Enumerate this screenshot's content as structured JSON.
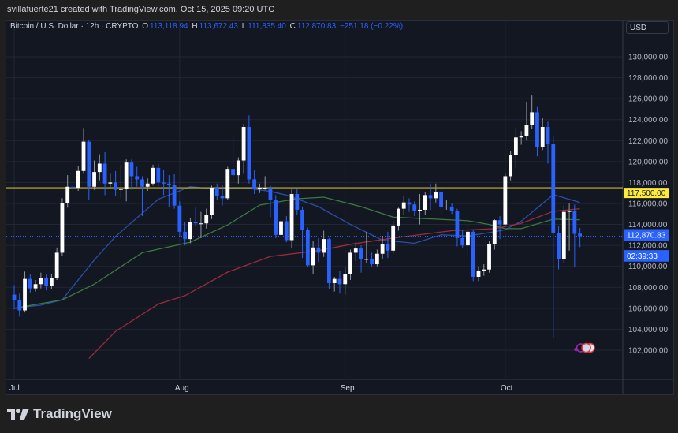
{
  "credit": "svillafuerte21 created with TradingView.com, Oct 15, 2025 09:20 UTC",
  "legend": {
    "symbol": "Bitcoin / U.S. Dollar · 12h · CRYPTO",
    "open_label": "O",
    "open": "113,118.94",
    "high_label": "H",
    "high": "113,672.43",
    "low_label": "L",
    "low": "111,835.40",
    "close_label": "C",
    "close": "112,870.83",
    "change": "−251.18 (−0.22%)"
  },
  "currency": "USD",
  "brand": "TradingView",
  "colors": {
    "up": "#ffffff",
    "down": "#2962ff",
    "level": "#c8b53a",
    "level_label": "#ffeb3b",
    "price_label": "#2962ff",
    "ma_blue": "#2a4fa8",
    "ma_green": "#3b7a3f",
    "ma_red": "#9c2b3a",
    "grid": "#232735",
    "bg": "#131722"
  },
  "chart_data": {
    "type": "candlestick",
    "y_axis": {
      "min": 101000,
      "max": 131500,
      "ticks": [
        "130,000.00",
        "128,000.00",
        "126,000.00",
        "124,000.00",
        "122,000.00",
        "120,000.00",
        "118,000.00",
        "116,000.00",
        "114,000.00",
        "112,000.00",
        "110,000.00",
        "108,000.00",
        "106,000.00",
        "104,000.00",
        "102,000.00"
      ],
      "tick_values": [
        130000,
        128000,
        126000,
        124000,
        122000,
        120000,
        118000,
        116000,
        114000,
        112000,
        110000,
        108000,
        106000,
        104000,
        102000
      ]
    },
    "x_axis": {
      "labels": [
        "Jul",
        "Aug",
        "Sep",
        "Oct"
      ],
      "label_dates": [
        "Jul 1",
        "Aug 1",
        "Sep 1",
        "Oct 1"
      ]
    },
    "grid": true,
    "horizontal_level": {
      "value": 117500,
      "label": "117,500.00"
    },
    "current_price": {
      "value": 112870.83,
      "label": "112,870.83",
      "countdown": "02:39:33"
    },
    "candles": [
      [
        "Jul 1",
        107300,
        108200,
        105900,
        106800
      ],
      [
        "Jul 2",
        106800,
        107400,
        105200,
        105800
      ],
      [
        "Jul 3",
        105800,
        109500,
        105600,
        108800
      ],
      [
        "Jul 4",
        108800,
        109300,
        107500,
        107900
      ],
      [
        "Jul 5",
        107900,
        108700,
        107600,
        108300
      ],
      [
        "Jul 6",
        108300,
        109400,
        107900,
        108900
      ],
      [
        "Jul 7",
        108900,
        109200,
        107700,
        108100
      ],
      [
        "Jul 8",
        108100,
        109300,
        107800,
        108900
      ],
      [
        "Jul 9",
        108900,
        111800,
        108700,
        111300
      ],
      [
        "Jul 10",
        111300,
        116500,
        111000,
        116000
      ],
      [
        "Jul 11",
        116000,
        118700,
        115600,
        117600
      ],
      [
        "Jul 12",
        117600,
        118200,
        116900,
        117500
      ],
      [
        "Jul 13",
        117500,
        119600,
        117200,
        119100
      ],
      [
        "Jul 14",
        119100,
        123200,
        118900,
        121900
      ],
      [
        "Jul 15",
        121900,
        122100,
        116300,
        117600
      ],
      [
        "Jul 16",
        117600,
        120100,
        117300,
        119000
      ],
      [
        "Jul 17",
        119000,
        120700,
        118200,
        119800
      ],
      [
        "Jul 18",
        119800,
        120900,
        116800,
        117900
      ],
      [
        "Jul 19",
        117900,
        118900,
        117500,
        118000
      ],
      [
        "Jul 20",
        118000,
        119100,
        116700,
        117300
      ],
      [
        "Jul 21",
        117300,
        119700,
        116500,
        117400
      ],
      [
        "Jul 22",
        117400,
        120200,
        116200,
        119900
      ],
      [
        "Jul 23",
        119900,
        120200,
        117300,
        118600
      ],
      [
        "Jul 24",
        118600,
        119500,
        117600,
        118300
      ],
      [
        "Jul 25",
        118300,
        118600,
        114800,
        117600
      ],
      [
        "Jul 26",
        117600,
        118400,
        117200,
        117900
      ],
      [
        "Jul 27",
        117900,
        119700,
        117700,
        119400
      ],
      [
        "Jul 28",
        119400,
        119800,
        117600,
        118000
      ],
      [
        "Jul 29",
        118000,
        119200,
        116800,
        117900
      ],
      [
        "Jul 30",
        117900,
        118700,
        115700,
        117800
      ],
      [
        "Jul 31",
        117800,
        118800,
        115500,
        115800
      ],
      [
        "Aug 1",
        115800,
        116200,
        112800,
        113300
      ],
      [
        "Aug 2",
        113300,
        114200,
        112000,
        112600
      ],
      [
        "Aug 3",
        112600,
        114600,
        112200,
        114200
      ],
      [
        "Aug 4",
        114200,
        115700,
        113800,
        114100
      ],
      [
        "Aug 5",
        114100,
        115200,
        112700,
        114100
      ],
      [
        "Aug 6",
        114100,
        115500,
        113600,
        114900
      ],
      [
        "Aug 7",
        114900,
        117700,
        114500,
        117500
      ],
      [
        "Aug 8",
        117500,
        117900,
        116300,
        116700
      ],
      [
        "Aug 9",
        116700,
        117800,
        115800,
        116500
      ],
      [
        "Aug 10",
        116500,
        119500,
        116300,
        119300
      ],
      [
        "Aug 11",
        119300,
        122300,
        118100,
        118700
      ],
      [
        "Aug 12",
        118700,
        120400,
        117900,
        120100
      ],
      [
        "Aug 13",
        120100,
        123600,
        118900,
        123300
      ],
      [
        "Aug 14",
        123300,
        124400,
        117900,
        118300
      ],
      [
        "Aug 15",
        118300,
        119200,
        116900,
        117400
      ],
      [
        "Aug 16",
        117400,
        117900,
        117000,
        117500
      ],
      [
        "Aug 17",
        117500,
        118600,
        117300,
        117500
      ],
      [
        "Aug 18",
        117500,
        117700,
        114700,
        116300
      ],
      [
        "Aug 19",
        116300,
        116800,
        112700,
        113000
      ],
      [
        "Aug 20",
        113000,
        114600,
        112400,
        114300
      ],
      [
        "Aug 21",
        114300,
        114800,
        112300,
        112500
      ],
      [
        "Aug 22",
        112500,
        117400,
        111700,
        116900
      ],
      [
        "Aug 23",
        116900,
        117400,
        114900,
        115400
      ],
      [
        "Aug 24",
        115400,
        115700,
        110800,
        113500
      ],
      [
        "Aug 25",
        113500,
        113700,
        109900,
        110100
      ],
      [
        "Aug 26",
        110100,
        112400,
        109300,
        111800
      ],
      [
        "Aug 27",
        111800,
        112700,
        110400,
        111300
      ],
      [
        "Aug 28",
        111300,
        113400,
        110900,
        112600
      ],
      [
        "Aug 29",
        112600,
        112700,
        107800,
        108400
      ],
      [
        "Aug 30",
        108400,
        109000,
        107600,
        108800
      ],
      [
        "Aug 31",
        108800,
        109600,
        107400,
        108300
      ],
      [
        "Sep 1",
        108300,
        109900,
        107300,
        109300
      ],
      [
        "Sep 2",
        109300,
        111600,
        108700,
        111300
      ],
      [
        "Sep 3",
        111300,
        112300,
        110500,
        111700
      ],
      [
        "Sep 4",
        111700,
        112000,
        109400,
        110700
      ],
      [
        "Sep 5",
        110700,
        113300,
        110300,
        110700
      ],
      [
        "Sep 6",
        110700,
        111300,
        110000,
        110200
      ],
      [
        "Sep 7",
        110200,
        111600,
        110000,
        111200
      ],
      [
        "Sep 8",
        111200,
        112900,
        110700,
        112100
      ],
      [
        "Sep 9",
        112100,
        113300,
        110800,
        111500
      ],
      [
        "Sep 10",
        111500,
        114300,
        111200,
        113900
      ],
      [
        "Sep 11",
        113900,
        115600,
        113400,
        115500
      ],
      [
        "Sep 12",
        115500,
        116700,
        114900,
        116100
      ],
      [
        "Sep 13",
        116100,
        116500,
        115200,
        115900
      ],
      [
        "Sep 14",
        115900,
        116200,
        114800,
        115300
      ],
      [
        "Sep 15",
        115300,
        116900,
        114000,
        115400
      ],
      [
        "Sep 16",
        115400,
        117100,
        114900,
        116800
      ],
      [
        "Sep 17",
        116800,
        117900,
        115400,
        116500
      ],
      [
        "Sep 18",
        116500,
        117900,
        116100,
        117100
      ],
      [
        "Sep 19",
        117100,
        117300,
        115100,
        115700
      ],
      [
        "Sep 20",
        115700,
        116300,
        115400,
        115700
      ],
      [
        "Sep 21",
        115700,
        116000,
        115000,
        115300
      ],
      [
        "Sep 22",
        115300,
        115500,
        111900,
        112700
      ],
      [
        "Sep 23",
        112700,
        113500,
        111800,
        112000
      ],
      [
        "Sep 24",
        112000,
        114000,
        111100,
        113300
      ],
      [
        "Sep 25",
        113300,
        113500,
        108600,
        109000
      ],
      [
        "Sep 26",
        109000,
        110000,
        108600,
        109600
      ],
      [
        "Sep 27",
        109600,
        110200,
        109100,
        109700
      ],
      [
        "Sep 28",
        109700,
        112400,
        109400,
        112100
      ],
      [
        "Sep 29",
        112100,
        114500,
        111600,
        114400
      ],
      [
        "Sep 30",
        114400,
        114800,
        112600,
        114000
      ],
      [
        "Oct 1",
        114000,
        118900,
        113900,
        118600
      ],
      [
        "Oct 2",
        118600,
        121000,
        118200,
        120600
      ],
      [
        "Oct 3",
        120600,
        123200,
        119400,
        122300
      ],
      [
        "Oct 4",
        122300,
        122900,
        121600,
        122400
      ],
      [
        "Oct 5",
        122400,
        125700,
        122000,
        123500
      ],
      [
        "Oct 6",
        123500,
        126300,
        123100,
        124700
      ],
      [
        "Oct 7",
        124700,
        125200,
        120500,
        121400
      ],
      [
        "Oct 8",
        121400,
        124200,
        121100,
        123300
      ],
      [
        "Oct 9",
        123300,
        123800,
        119800,
        121700
      ],
      [
        "Oct 10",
        121700,
        122500,
        103200,
        113200
      ],
      [
        "Oct 11",
        113200,
        113900,
        109700,
        110700
      ],
      [
        "Oct 12",
        110700,
        115800,
        110300,
        115200
      ],
      [
        "Oct 13",
        115200,
        116000,
        111500,
        115300
      ],
      [
        "Oct 14",
        115300,
        115900,
        109900,
        113100
      ],
      [
        "Oct 15",
        113118.94,
        113672.43,
        111835.4,
        112870.83
      ]
    ],
    "moving_averages": [
      {
        "color_key": "ma_blue",
        "points": [
          [
            "Jul 1",
            106000
          ],
          [
            "Jul 6",
            106300
          ],
          [
            "Jul 10",
            106800
          ],
          [
            "Jul 16",
            110600
          ],
          [
            "Jul 20",
            112850
          ],
          [
            "Jul 28",
            116400
          ],
          [
            "Aug 3",
            117600
          ],
          [
            "Aug 7",
            117400
          ],
          [
            "Aug 13",
            117500
          ],
          [
            "Aug 16",
            117300
          ],
          [
            "Aug 18",
            117150
          ],
          [
            "Aug 21",
            116800
          ],
          [
            "Aug 27",
            115700
          ],
          [
            "Sep 2",
            114000
          ],
          [
            "Sep 8",
            112500
          ],
          [
            "Sep 14",
            112200
          ],
          [
            "Sep 19",
            113000
          ],
          [
            "Sep 24",
            112900
          ],
          [
            "Sep 29",
            113300
          ],
          [
            "Oct 1",
            113500
          ],
          [
            "Oct 4",
            114300
          ],
          [
            "Oct 10",
            116850
          ],
          [
            "Oct 15",
            116100
          ]
        ]
      },
      {
        "color_key": "ma_green",
        "points": [
          [
            "Jul 1",
            106000
          ],
          [
            "Jul 10",
            106800
          ],
          [
            "Jul 16",
            108300
          ],
          [
            "Jul 25",
            111300
          ],
          [
            "Aug 3",
            112300
          ],
          [
            "Aug 10",
            113950
          ],
          [
            "Aug 16",
            115850
          ],
          [
            "Aug 23",
            116450
          ],
          [
            "Aug 28",
            116600
          ],
          [
            "Sep 4",
            115700
          ],
          [
            "Sep 10",
            114700
          ],
          [
            "Sep 18",
            114500
          ],
          [
            "Sep 24",
            114350
          ],
          [
            "Sep 28",
            114000
          ],
          [
            "Oct 1",
            113600
          ],
          [
            "Oct 4",
            113600
          ],
          [
            "Oct 10",
            114500
          ],
          [
            "Oct 15",
            114450
          ]
        ]
      },
      {
        "color_key": "ma_red",
        "points": [
          [
            "Jul 15",
            101200
          ],
          [
            "Jul 20",
            103800
          ],
          [
            "Jul 28",
            106400
          ],
          [
            "Aug 2",
            107200
          ],
          [
            "Aug 10",
            109450
          ],
          [
            "Aug 18",
            110950
          ],
          [
            "Aug 27",
            111500
          ],
          [
            "Sep 2",
            112100
          ],
          [
            "Sep 10",
            112700
          ],
          [
            "Sep 21",
            113400
          ],
          [
            "Sep 29",
            113600
          ],
          [
            "Oct 4",
            114100
          ],
          [
            "Oct 10",
            115250
          ],
          [
            "Oct 15",
            115500
          ]
        ]
      }
    ]
  }
}
